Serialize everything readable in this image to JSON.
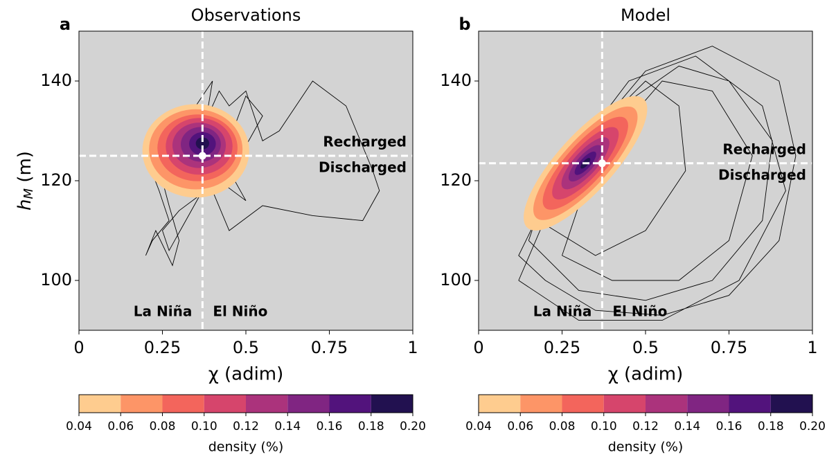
{
  "chart_data": [
    {
      "type": "phase-density",
      "panel": "a",
      "title": "Observations",
      "xlabel": "χ (adim)",
      "ylabel": [
        "h",
        "M",
        " (m)"
      ],
      "xlim": [
        0,
        1
      ],
      "xticks": [
        0,
        {
          "value": 0.25,
          "label": "0.25"
        },
        {
          "value": 0.5,
          "label": "0.5"
        },
        {
          "value": 0.75,
          "label": "0.75"
        },
        1
      ],
      "ylim": [
        90,
        150
      ],
      "yticks": [
        100,
        120,
        140
      ],
      "center": {
        "x": 0.37,
        "y": 125
      },
      "annotations": {
        "upper": "Recharged",
        "lower": "Discharged",
        "left": "La Niña",
        "right": "El Niño"
      },
      "trajectory": {
        "x": [
          0.37,
          0.3,
          0.25,
          0.22,
          0.2,
          0.24,
          0.27,
          0.22,
          0.2,
          0.23,
          0.28,
          0.3,
          0.27,
          0.25,
          0.27,
          0.3,
          0.32,
          0.3,
          0.35,
          0.4,
          0.38,
          0.42,
          0.45,
          0.5,
          0.55,
          0.6,
          0.7,
          0.8,
          0.88,
          0.9,
          0.85,
          0.7,
          0.55,
          0.45,
          0.4,
          0.42,
          0.5,
          0.55,
          0.5,
          0.45,
          0.42,
          0.5,
          0.45,
          0.38,
          0.3,
          0.25,
          0.27,
          0.32,
          0.37
        ],
        "y": [
          125,
          128,
          132,
          130,
          125,
          118,
          112,
          108,
          105,
          110,
          103,
          108,
          115,
          120,
          125,
          130,
          133,
          128,
          135,
          140,
          132,
          138,
          135,
          138,
          128,
          130,
          140,
          135,
          122,
          118,
          112,
          113,
          115,
          110,
          118,
          125,
          127,
          133,
          137,
          128,
          120,
          116,
          122,
          118,
          114,
          110,
          106,
          112,
          118
        ]
      },
      "contours": [
        {
          "level": 0.04,
          "x": 0.35,
          "y": 126,
          "rx": 0.16,
          "ry": 0.14,
          "angle": 0
        },
        {
          "level": 0.06,
          "x": 0.35,
          "y": 126.3,
          "rx": 0.14,
          "ry": 0.12,
          "angle": 0
        },
        {
          "level": 0.08,
          "x": 0.355,
          "y": 126.6,
          "rx": 0.12,
          "ry": 0.1,
          "angle": 0
        },
        {
          "level": {
            "value": 0.1,
            "label": "0.10"
          },
          "x": 0.36,
          "y": 126.9,
          "rx": 0.1,
          "ry": 0.085,
          "angle": 0
        },
        {
          "level": 0.12,
          "x": 0.36,
          "y": 127.1,
          "rx": 0.08,
          "ry": 0.068,
          "angle": 0
        },
        {
          "level": 0.14,
          "x": 0.365,
          "y": 127.3,
          "rx": 0.06,
          "ry": 0.052,
          "angle": 0
        },
        {
          "level": 0.16,
          "x": 0.37,
          "y": 127.4,
          "rx": 0.04,
          "ry": 0.035,
          "angle": 0
        },
        {
          "level": 0.18,
          "x": 0.37,
          "y": 127.5,
          "rx": 0.02,
          "ry": 0.018,
          "angle": 0
        }
      ],
      "colorbar": {
        "label": "density (%)",
        "ticks": [
          0.04,
          0.06,
          0.08,
          {
            "value": 0.1,
            "label": "0.10"
          },
          0.12,
          0.14,
          0.16,
          0.18,
          {
            "value": 0.2,
            "label": "0.20"
          }
        ],
        "colors": [
          "#fecc8f",
          "#fd9567",
          "#f3655c",
          "#d6456c",
          "#ab337c",
          "#802582",
          "#52137c",
          "#221150"
        ]
      }
    },
    {
      "type": "phase-density",
      "panel": "b",
      "title": "Model",
      "xlabel": "χ (adim)",
      "xlim": [
        0,
        1
      ],
      "xticks": [
        0,
        {
          "value": 0.25,
          "label": "0.25"
        },
        {
          "value": 0.5,
          "label": "0.5"
        },
        {
          "value": 0.75,
          "label": "0.75"
        },
        1
      ],
      "ylim": [
        90,
        150
      ],
      "yticks": [
        100,
        120,
        140
      ],
      "center": {
        "x": 0.37,
        "y": 123.5
      },
      "annotations": {
        "upper": "Recharged",
        "lower": "Discharged",
        "left": "La Niña",
        "right": "El Niño"
      },
      "trajectory": {
        "x": [
          0.2,
          0.35,
          0.55,
          0.75,
          0.9,
          0.95,
          0.9,
          0.7,
          0.5,
          0.35,
          0.2,
          0.12,
          0.2,
          null,
          0.15,
          0.3,
          0.5,
          0.7,
          0.85,
          0.88,
          0.75,
          0.6,
          0.45,
          0.3,
          0.18,
          0.15,
          null,
          0.25,
          0.4,
          0.6,
          0.75,
          0.82,
          0.7,
          0.55,
          0.42,
          0.3,
          0.25,
          null,
          0.12,
          0.3,
          0.55,
          0.78,
          0.92,
          0.85,
          0.65,
          0.45,
          0.28,
          0.12,
          null,
          0.18,
          0.35,
          0.5,
          0.62,
          0.6,
          0.5,
          0.38,
          0.25,
          0.18
        ],
        "y": [
          100,
          94,
          93,
          97,
          108,
          125,
          140,
          147,
          142,
          130,
          116,
          105,
          100,
          null,
          108,
          98,
          96,
          100,
          112,
          128,
          140,
          143,
          136,
          124,
          114,
          108,
          null,
          105,
          100,
          100,
          108,
          125,
          138,
          140,
          130,
          115,
          105,
          null,
          100,
          92,
          92,
          100,
          118,
          135,
          145,
          140,
          125,
          100,
          null,
          112,
          105,
          110,
          122,
          135,
          140,
          132,
          120,
          112
        ]
      },
      "contours": [
        {
          "level": 0.04,
          "x": 0.32,
          "y": 123.5,
          "rx": 0.26,
          "ry": 0.085,
          "angle": -48
        },
        {
          "level": 0.06,
          "x": 0.32,
          "y": 123.5,
          "rx": 0.22,
          "ry": 0.07,
          "angle": -48
        },
        {
          "level": 0.08,
          "x": 0.32,
          "y": 123.5,
          "rx": 0.18,
          "ry": 0.058,
          "angle": -48
        },
        {
          "level": {
            "value": 0.1,
            "label": "0.10"
          },
          "x": 0.32,
          "y": 123.5,
          "rx": 0.14,
          "ry": 0.046,
          "angle": -48
        },
        {
          "level": 0.12,
          "x": 0.32,
          "y": 123.5,
          "rx": 0.1,
          "ry": 0.035,
          "angle": -48
        },
        {
          "level": 0.14,
          "x": 0.32,
          "y": 123.5,
          "rx": 0.07,
          "ry": 0.025,
          "angle": -48
        },
        {
          "level": 0.16,
          "x": 0.32,
          "y": 123.5,
          "rx": 0.045,
          "ry": 0.016,
          "angle": -48
        },
        {
          "level": 0.18,
          "x": 0.32,
          "y": 123.5,
          "rx": 0.02,
          "ry": 0.008,
          "angle": -48
        }
      ],
      "colorbar": {
        "label": "density (%)",
        "ticks": [
          0.04,
          0.06,
          0.08,
          {
            "value": 0.1,
            "label": "0.10"
          },
          0.12,
          0.14,
          0.16,
          0.18,
          {
            "value": 0.2,
            "label": "0.20"
          }
        ],
        "colors": [
          "#fecc8f",
          "#fd9567",
          "#f3655c",
          "#d6456c",
          "#ab337c",
          "#802582",
          "#52137c",
          "#221150"
        ]
      }
    }
  ]
}
